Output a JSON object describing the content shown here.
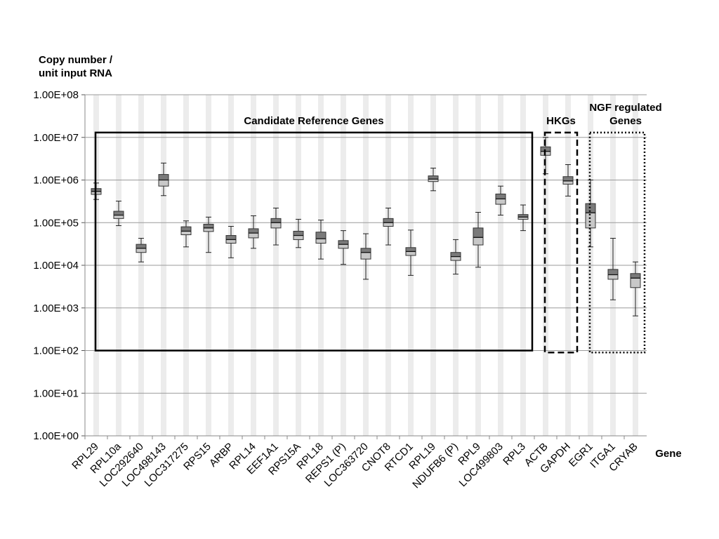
{
  "chart_data": {
    "type": "box",
    "y_axis_title": "Copy number /\nunit input  RNA",
    "x_axis_title": "Gene",
    "y_scale": "log10",
    "ylim": [
      1,
      100000000
    ],
    "y_tick_labels": [
      "1.00E+00",
      "1.00E+01",
      "1.00E+02",
      "1.00E+03",
      "1.00E+04",
      "1.00E+05",
      "1.00E+06",
      "1.00E+07",
      "1.00E+08"
    ],
    "grid": true,
    "categories": [
      "RPL29",
      "RPL10a",
      "LOC292640",
      "LOC498143",
      "LOC317275",
      "RPS15",
      "ARBP",
      "RPL14",
      "EEF1A1",
      "RPS15A",
      "RPL18",
      "REPS1 (P)",
      "LOC363720",
      "CNOT8",
      "RTCD1",
      "RPL19",
      "NDUFB6 (P)",
      "RPL9",
      "LOC499803",
      "RPL3",
      "ACTB",
      "GAPDH",
      "EGR1",
      "ITGA1",
      "CRYAB"
    ],
    "boxes": [
      {
        "gene": "RPL29",
        "min": 350000,
        "q1": 460000,
        "median": 540000,
        "q3": 630000,
        "max": 850000
      },
      {
        "gene": "RPL10a",
        "min": 85000,
        "q1": 125000,
        "median": 150000,
        "q3": 185000,
        "max": 320000
      },
      {
        "gene": "LOC292640",
        "min": 12000,
        "q1": 20000,
        "median": 25000,
        "q3": 31000,
        "max": 43000
      },
      {
        "gene": "LOC498143",
        "min": 430000,
        "q1": 720000,
        "median": 1000000,
        "q3": 1350000,
        "max": 2500000
      },
      {
        "gene": "LOC317275",
        "min": 27000,
        "q1": 52000,
        "median": 63000,
        "q3": 80000,
        "max": 110000
      },
      {
        "gene": "RPS15",
        "min": 20000,
        "q1": 62000,
        "median": 75000,
        "q3": 92000,
        "max": 135000
      },
      {
        "gene": "ARBP",
        "min": 15000,
        "q1": 33000,
        "median": 40000,
        "q3": 50000,
        "max": 82000
      },
      {
        "gene": "RPL14",
        "min": 25000,
        "q1": 44000,
        "median": 57000,
        "q3": 72000,
        "max": 145000
      },
      {
        "gene": "EEF1A1",
        "min": 30000,
        "q1": 75000,
        "median": 100000,
        "q3": 125000,
        "max": 220000
      },
      {
        "gene": "RPS15A",
        "min": 26000,
        "q1": 40000,
        "median": 50000,
        "q3": 63000,
        "max": 120000
      },
      {
        "gene": "RPL18",
        "min": 14000,
        "q1": 33000,
        "median": 42000,
        "q3": 60000,
        "max": 115000
      },
      {
        "gene": "REPS1 (P)",
        "min": 10500,
        "q1": 25000,
        "median": 31000,
        "q3": 38000,
        "max": 65000
      },
      {
        "gene": "LOC363720",
        "min": 4700,
        "q1": 14000,
        "median": 20000,
        "q3": 25000,
        "max": 55000
      },
      {
        "gene": "CNOT8",
        "min": 30000,
        "q1": 82000,
        "median": 100000,
        "q3": 125000,
        "max": 220000
      },
      {
        "gene": "RTCD1",
        "min": 5800,
        "q1": 17000,
        "median": 21000,
        "q3": 26000,
        "max": 67000
      },
      {
        "gene": "RPL19",
        "min": 560000,
        "q1": 920000,
        "median": 1050000,
        "q3": 1250000,
        "max": 1900000
      },
      {
        "gene": "NDUFB6 (P)",
        "min": 6200,
        "q1": 13000,
        "median": 16000,
        "q3": 20000,
        "max": 40000
      },
      {
        "gene": "RPL9",
        "min": 9000,
        "q1": 30000,
        "median": 45000,
        "q3": 75000,
        "max": 175000
      },
      {
        "gene": "LOC499803",
        "min": 150000,
        "q1": 270000,
        "median": 360000,
        "q3": 470000,
        "max": 720000
      },
      {
        "gene": "RPL3",
        "min": 65000,
        "q1": 120000,
        "median": 135000,
        "q3": 155000,
        "max": 260000
      },
      {
        "gene": "ACTB",
        "min": 1400000,
        "q1": 3800000,
        "median": 4700000,
        "q3": 6000000,
        "max": 10000000
      },
      {
        "gene": "GAPDH",
        "min": 420000,
        "q1": 800000,
        "median": 950000,
        "q3": 1200000,
        "max": 2300000
      },
      {
        "gene": "EGR1",
        "min": 27000,
        "q1": 75000,
        "median": 170000,
        "q3": 280000,
        "max": 1000000
      },
      {
        "gene": "ITGA1",
        "min": 1550,
        "q1": 4700,
        "median": 6000,
        "q3": 8000,
        "max": 43000
      },
      {
        "gene": "CRYAB",
        "min": 650,
        "q1": 3000,
        "median": 5000,
        "q3": 6400,
        "max": 12000
      }
    ],
    "groups": [
      {
        "label": "Candidate Reference Genes",
        "from": "RPL29",
        "to": "RPL3",
        "border": "solid",
        "y_range": [
          100,
          13000000
        ]
      },
      {
        "label": "HKGs",
        "from": "ACTB",
        "to": "GAPDH",
        "border": "dashed",
        "y_range": [
          90,
          13000000
        ]
      },
      {
        "label": "NGF regulated\nGenes",
        "from": "EGR1",
        "to": "CRYAB",
        "border": "dotted",
        "y_range": [
          90,
          13000000
        ]
      }
    ],
    "colors": {
      "box_upper": "#7a7a7a",
      "box_lower": "#c8c8c8",
      "grid": "#9a9a9a",
      "column_shade": "#ececec"
    }
  }
}
